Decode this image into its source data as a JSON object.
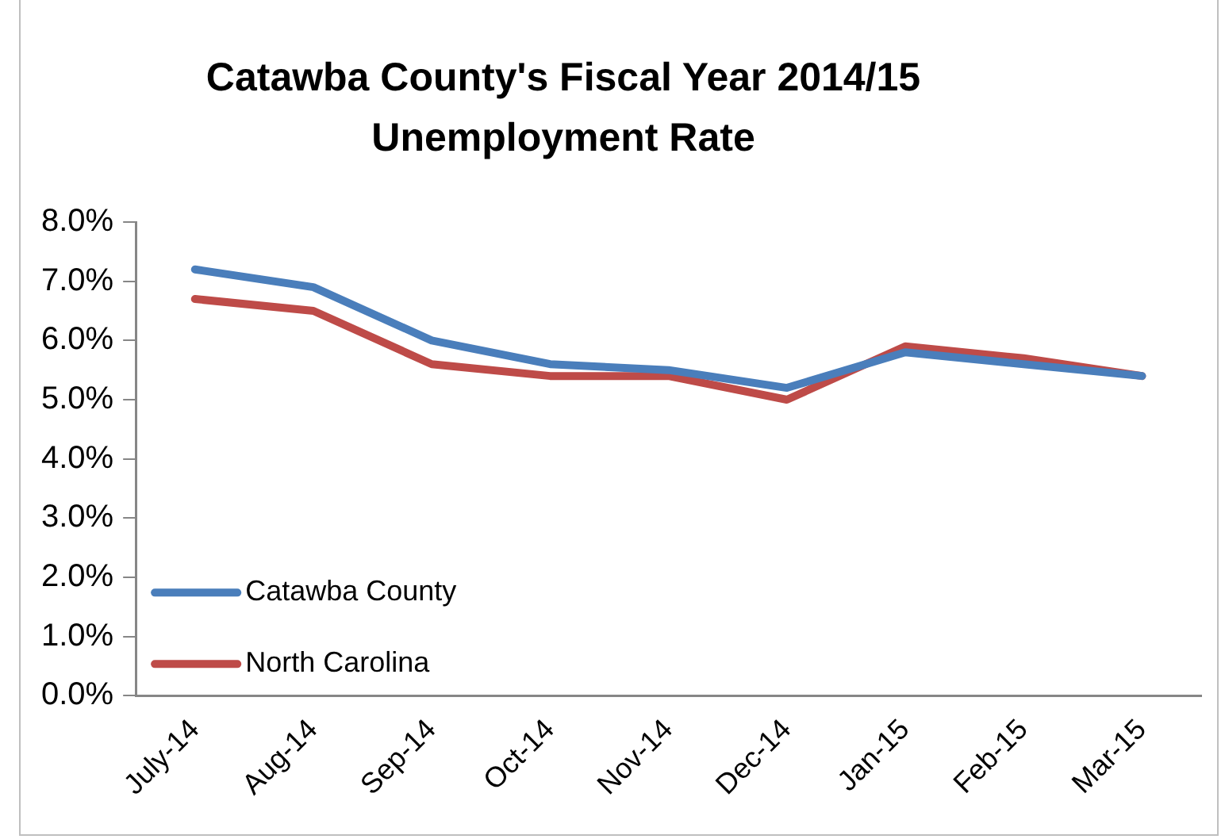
{
  "chart_data": {
    "type": "line",
    "title": "Catawba County's Fiscal Year 2014/15 Unemployment Rate",
    "categories": [
      "July-14",
      "Aug-14",
      "Sep-14",
      "Oct-14",
      "Nov-14",
      "Dec-14",
      "Jan-15",
      "Feb-15",
      "Mar-15"
    ],
    "series": [
      {
        "name": "Catawba County",
        "color": "#4a7ebb",
        "values": [
          7.2,
          6.9,
          6.0,
          5.6,
          5.5,
          5.2,
          5.8,
          5.6,
          5.4
        ]
      },
      {
        "name": "North Carolina",
        "color": "#be4b48",
        "values": [
          6.7,
          6.5,
          5.6,
          5.4,
          5.4,
          5.0,
          5.9,
          5.7,
          5.4
        ]
      }
    ],
    "ylim": [
      0,
      8
    ],
    "yticks": [
      {
        "value": 0,
        "label": "0.0%"
      },
      {
        "value": 1,
        "label": "1.0%"
      },
      {
        "value": 2,
        "label": "2.0%"
      },
      {
        "value": 3,
        "label": "3.0%"
      },
      {
        "value": 4,
        "label": "4.0%"
      },
      {
        "value": 5,
        "label": "5.0%"
      },
      {
        "value": 6,
        "label": "6.0%"
      },
      {
        "value": 7,
        "label": "7.0%"
      },
      {
        "value": 8,
        "label": "8.0%"
      }
    ],
    "grid": false,
    "legend": "bottom left",
    "marker": "none",
    "line_style": "solid"
  }
}
